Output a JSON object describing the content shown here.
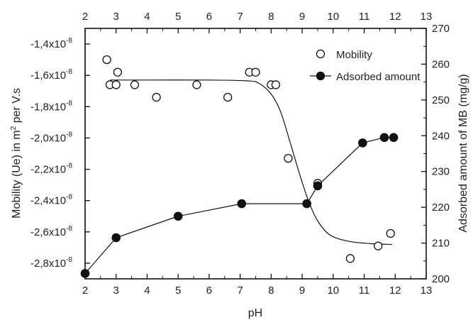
{
  "chart_data": {
    "type": "scatter",
    "xlabel": "pH",
    "ylabel_left_prefix": "Mobility (Ue) in m",
    "ylabel_left_sup": "2",
    "ylabel_left_suffix": " per V.s",
    "ylabel_right": "Adsorbed amount of MB (mg/g)",
    "xlim": [
      2,
      13
    ],
    "ylim_left": [
      -2.9e-08,
      -1.3e-08
    ],
    "ylim_right": [
      200,
      270
    ],
    "x_ticks": [
      "2",
      "3",
      "4",
      "5",
      "6",
      "7",
      "8",
      "9",
      "10",
      "11",
      "12",
      "13"
    ],
    "top_ticks": [
      "2",
      "3",
      "4",
      "5",
      "6",
      "7",
      "8",
      "9",
      "10",
      "11",
      "12",
      "13"
    ],
    "left_ticks": [
      {
        "value": -1.4e-08,
        "mantissa": "-1,4x10",
        "exp": "-8"
      },
      {
        "value": -1.6e-08,
        "mantissa": "-1,6x10",
        "exp": "-8"
      },
      {
        "value": -1.8e-08,
        "mantissa": "-1,8x10",
        "exp": "-8"
      },
      {
        "value": -2e-08,
        "mantissa": "-2,0x10",
        "exp": "-8"
      },
      {
        "value": -2.2e-08,
        "mantissa": "-2,2x10",
        "exp": "-8"
      },
      {
        "value": -2.4e-08,
        "mantissa": "-2,4x10",
        "exp": "-8"
      },
      {
        "value": -2.6e-08,
        "mantissa": "-2,6x10",
        "exp": "-8"
      },
      {
        "value": -2.8e-08,
        "mantissa": "-2,8x10",
        "exp": "-8"
      }
    ],
    "right_ticks": [
      "200",
      "210",
      "220",
      "230",
      "240",
      "250",
      "260",
      "270"
    ],
    "legend_placement": "top-right",
    "series": [
      {
        "name": "Mobility",
        "axis": "left",
        "marker": "open-circle",
        "points": [
          [
            2.7,
            -1.5e-08
          ],
          [
            2.8,
            -1.66e-08
          ],
          [
            3.0,
            -1.66e-08
          ],
          [
            3.05,
            -1.58e-08
          ],
          [
            3.6,
            -1.66e-08
          ],
          [
            4.3,
            -1.74e-08
          ],
          [
            5.6,
            -1.66e-08
          ],
          [
            6.6,
            -1.74e-08
          ],
          [
            7.3,
            -1.58e-08
          ],
          [
            7.5,
            -1.58e-08
          ],
          [
            8.0,
            -1.66e-08
          ],
          [
            8.15,
            -1.66e-08
          ],
          [
            8.55,
            -2.13e-08
          ],
          [
            9.5,
            -2.29e-08
          ],
          [
            10.55,
            -2.77e-08
          ],
          [
            11.45,
            -2.69e-08
          ],
          [
            11.85,
            -2.61e-08
          ]
        ]
      },
      {
        "name": "Adsorbed amount",
        "axis": "right",
        "marker": "filled-circle-line",
        "points": [
          [
            2.0,
            201.5
          ],
          [
            3.0,
            211.5
          ],
          [
            5.0,
            217.5
          ],
          [
            7.05,
            221.0
          ],
          [
            9.15,
            221.0
          ],
          [
            9.5,
            226.0
          ],
          [
            10.95,
            238.0
          ],
          [
            11.65,
            239.5
          ],
          [
            11.95,
            239.5
          ]
        ]
      }
    ],
    "fit_curve": {
      "axis": "left",
      "points": [
        [
          2.8,
          -1.63e-08
        ],
        [
          4.0,
          -1.63e-08
        ],
        [
          6.0,
          -1.63e-08
        ],
        [
          7.2,
          -1.635e-08
        ],
        [
          7.6,
          -1.65e-08
        ],
        [
          8.0,
          -1.72e-08
        ],
        [
          8.3,
          -1.83e-08
        ],
        [
          8.6,
          -2.02e-08
        ],
        [
          8.9,
          -2.22e-08
        ],
        [
          9.2,
          -2.4e-08
        ],
        [
          9.5,
          -2.53e-08
        ],
        [
          9.9,
          -2.62e-08
        ],
        [
          10.5,
          -2.66e-08
        ],
        [
          11.2,
          -2.675e-08
        ],
        [
          11.9,
          -2.68e-08
        ]
      ]
    }
  }
}
